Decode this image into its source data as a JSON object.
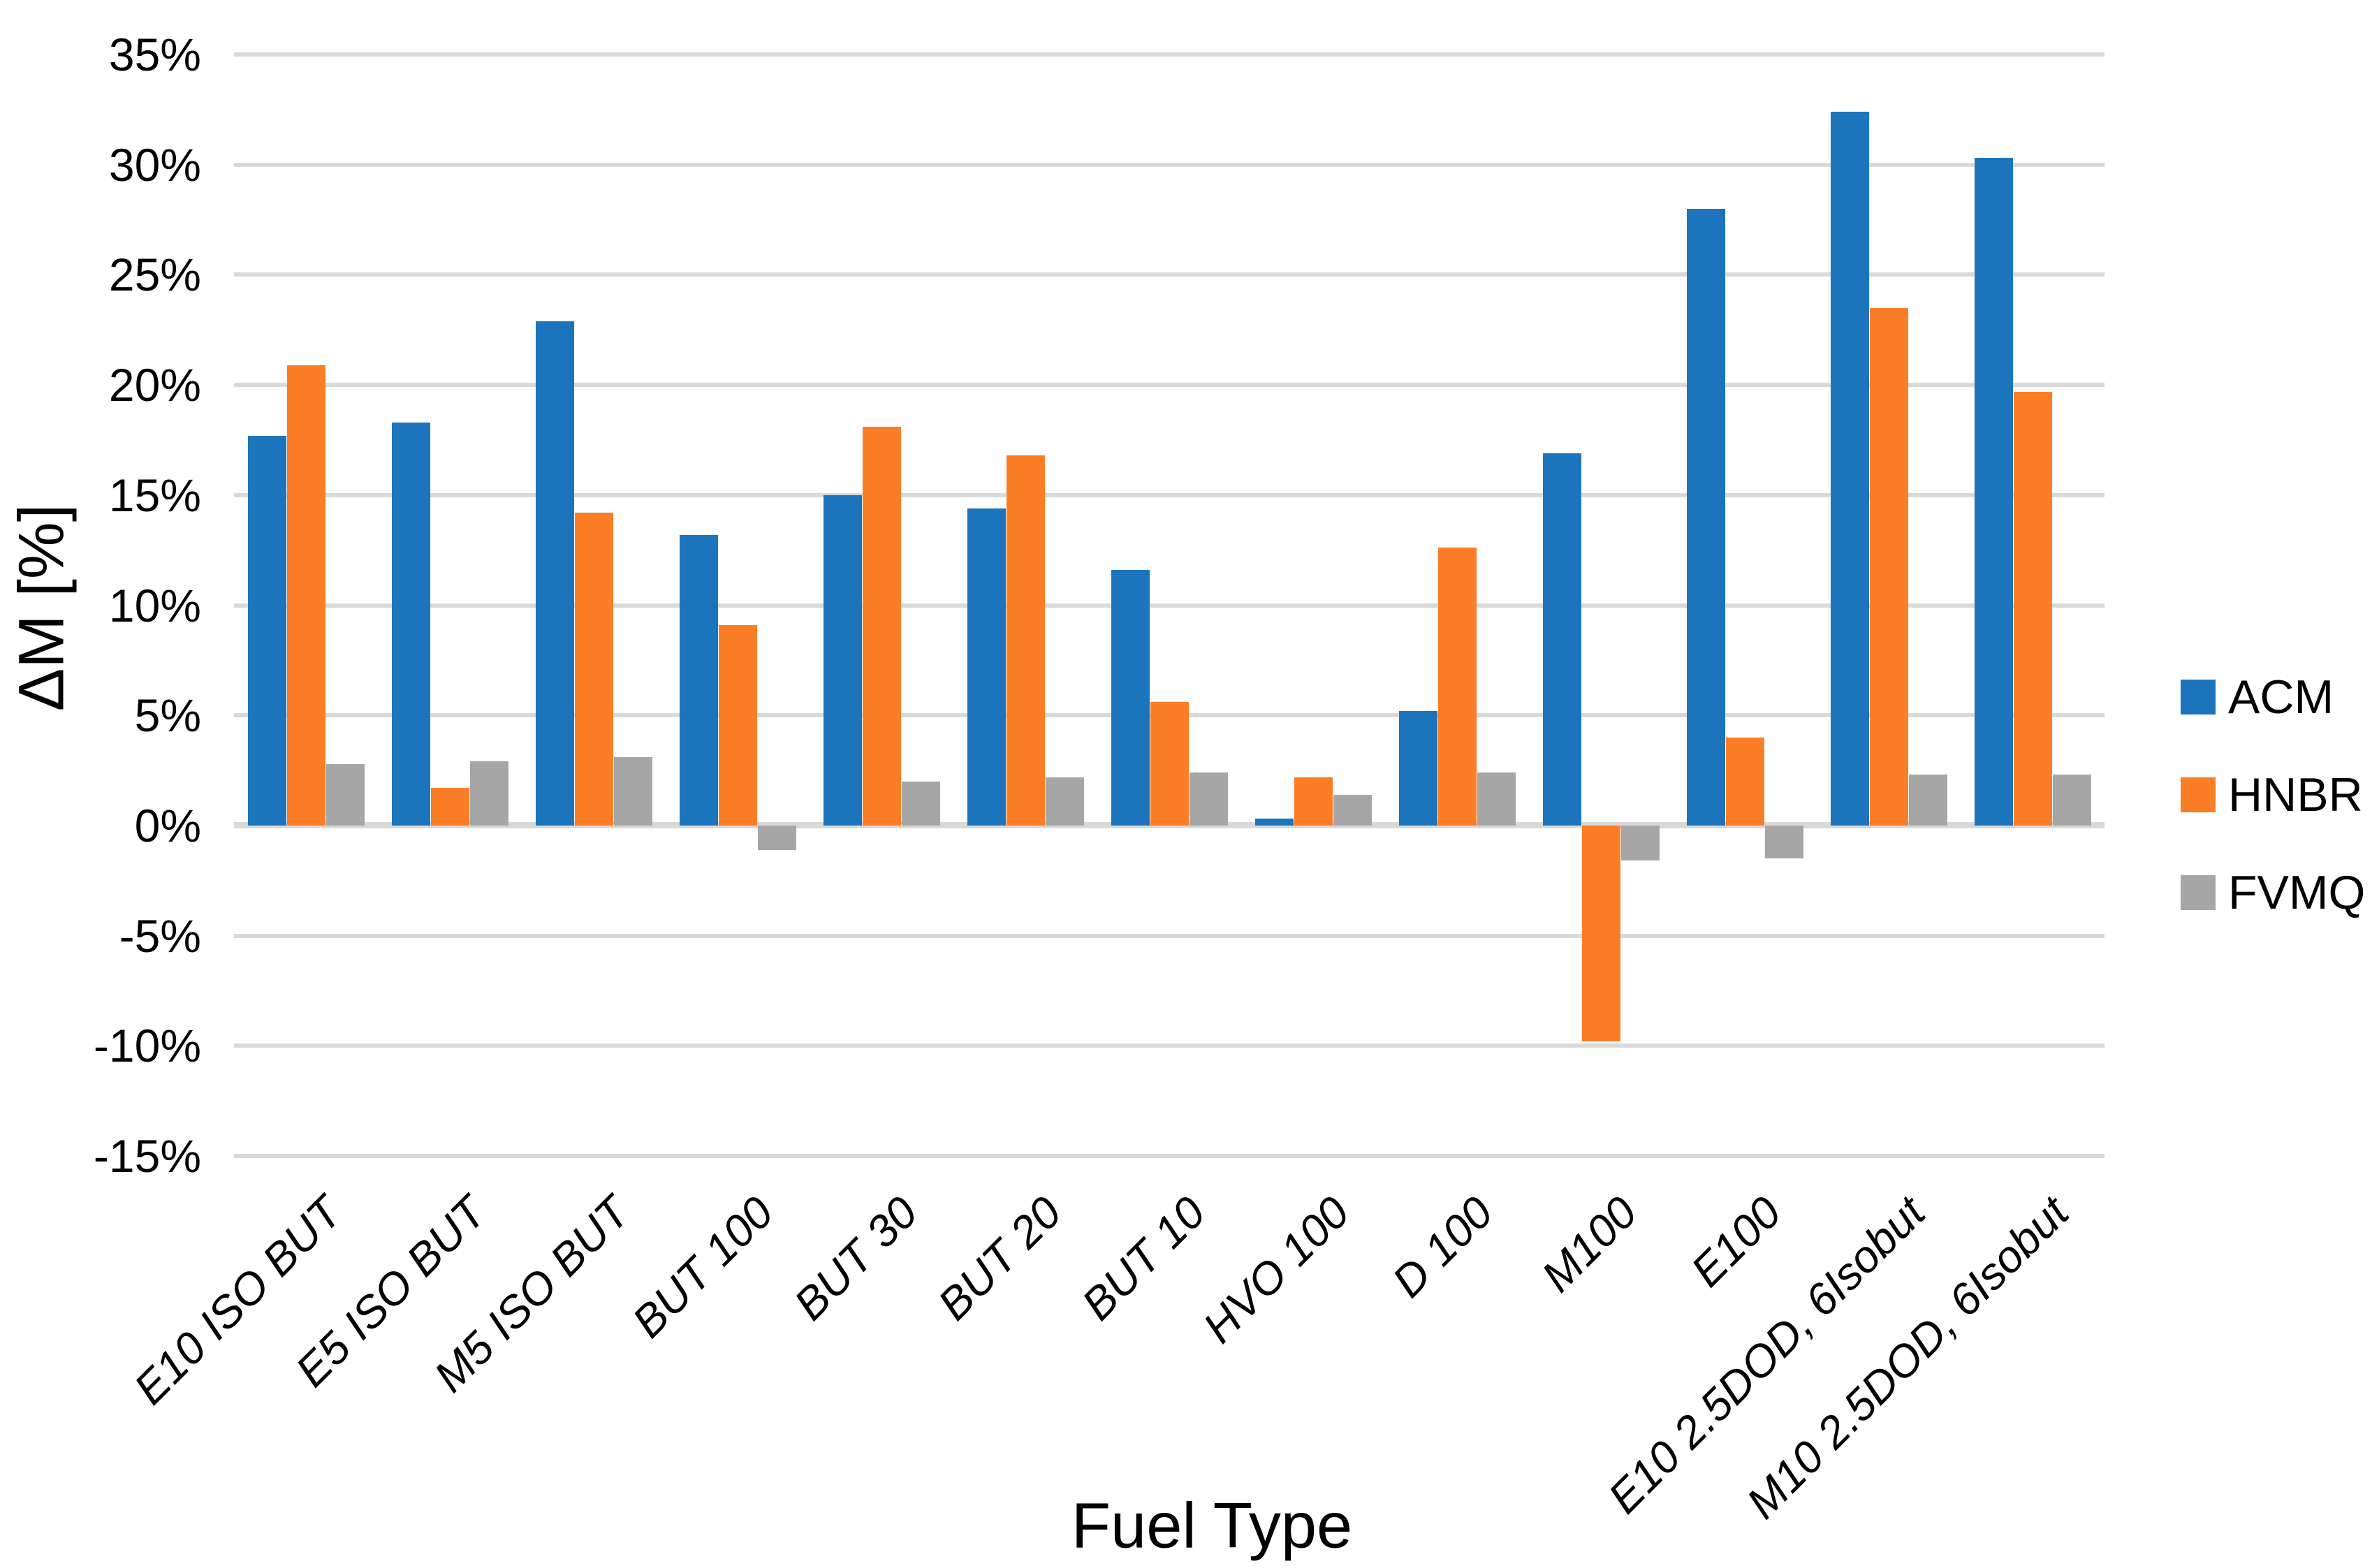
{
  "chart_data": {
    "type": "bar",
    "title": "",
    "xlabel": "Fuel Type",
    "ylabel": "ΔM [%]",
    "categories": [
      "E10 ISO BUT",
      "E5 ISO BUT",
      "M5 ISO BUT",
      "BUT 100",
      "BUT 30",
      "BUT 20",
      "BUT 10",
      "HVO 100",
      "D 100",
      "M100",
      "E100",
      "E10 2.5DOD, 6Isobut",
      "M10 2.5DOD, 6Isobut"
    ],
    "series": [
      {
        "name": "ACM",
        "color": "#1c75bc",
        "values": [
          17.7,
          18.3,
          22.9,
          13.2,
          15.0,
          14.4,
          11.6,
          0.3,
          5.2,
          16.9,
          28.0,
          32.4,
          30.3
        ]
      },
      {
        "name": "HNBR",
        "color": "#fb7d26",
        "values": [
          20.9,
          1.7,
          14.2,
          9.1,
          18.1,
          16.8,
          5.6,
          2.2,
          12.6,
          -9.8,
          4.0,
          23.5,
          19.7
        ]
      },
      {
        "name": "FVMQ",
        "color": "#a6a6a6",
        "values": [
          2.8,
          2.9,
          3.1,
          -1.1,
          2.0,
          2.2,
          2.4,
          1.4,
          2.4,
          -1.6,
          -1.5,
          2.3,
          2.3
        ]
      }
    ],
    "ylim": [
      -15,
      35
    ],
    "ytick_step": 5,
    "yticks": [
      35,
      30,
      25,
      20,
      15,
      10,
      5,
      0,
      -5,
      -10,
      -15
    ],
    "ytick_labels": [
      "35%",
      "30%",
      "25%",
      "20%",
      "15%",
      "10%",
      "5%",
      "0%",
      "-5%",
      "-10%",
      "-15%"
    ],
    "grid": true,
    "legend_position": "right",
    "gridline_color": "#d9d9d9",
    "text_color": "#000000"
  }
}
